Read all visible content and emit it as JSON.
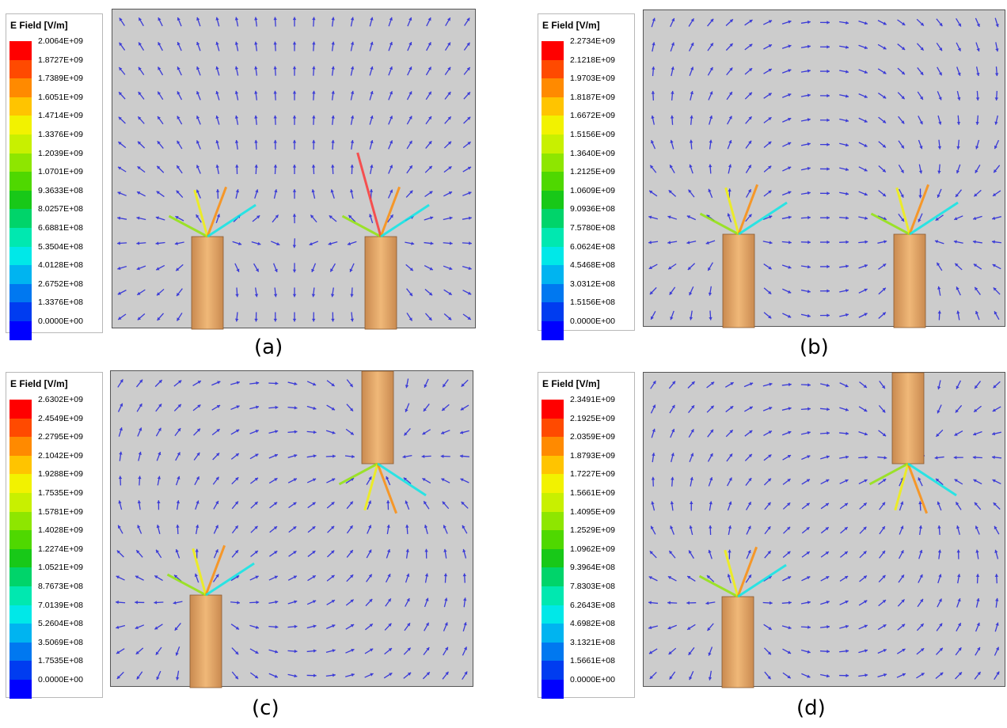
{
  "panels": [
    {
      "id": "a",
      "caption": "(a)",
      "legend": {
        "title": "E Field [V/m]",
        "ticks": [
          "2.0064E+09",
          "1.8727E+09",
          "1.7389E+09",
          "1.6051E+09",
          "1.4714E+09",
          "1.3376E+09",
          "1.2039E+09",
          "1.0701E+09",
          "9.3633E+08",
          "8.0257E+08",
          "6.6881E+08",
          "5.3504E+08",
          "4.0128E+08",
          "2.6752E+08",
          "1.3376E+08",
          "0.0000E+00"
        ]
      },
      "conductors": [
        {
          "label": "left rod",
          "position": "bottom"
        },
        {
          "label": "right rod",
          "position": "bottom"
        }
      ]
    },
    {
      "id": "b",
      "caption": "(b)",
      "legend": {
        "title": "E Field [V/m]",
        "ticks": [
          "2.2734E+09",
          "2.1218E+09",
          "1.9703E+09",
          "1.8187E+09",
          "1.6672E+09",
          "1.5156E+09",
          "1.3640E+09",
          "1.2125E+09",
          "1.0609E+09",
          "9.0936E+08",
          "7.5780E+08",
          "6.0624E+08",
          "4.5468E+08",
          "3.0312E+08",
          "1.5156E+08",
          "0.0000E+00"
        ]
      },
      "conductors": [
        {
          "label": "left rod",
          "position": "bottom"
        },
        {
          "label": "right rod",
          "position": "bottom"
        }
      ]
    },
    {
      "id": "c",
      "caption": "(c)",
      "legend": {
        "title": "E Field [V/m]",
        "ticks": [
          "2.6302E+09",
          "2.4549E+09",
          "2.2795E+09",
          "2.1042E+09",
          "1.9288E+09",
          "1.7535E+09",
          "1.5781E+09",
          "1.4028E+09",
          "1.2274E+09",
          "1.0521E+09",
          "8.7673E+08",
          "7.0139E+08",
          "5.2604E+08",
          "3.5069E+08",
          "1.7535E+08",
          "0.0000E+00"
        ]
      },
      "conductors": [
        {
          "label": "left rod",
          "position": "bottom"
        },
        {
          "label": "right rod",
          "position": "top"
        }
      ]
    },
    {
      "id": "d",
      "caption": "(d)",
      "legend": {
        "title": "E Field [V/m]",
        "ticks": [
          "2.3491E+09",
          "2.1925E+09",
          "2.0359E+09",
          "1.8793E+09",
          "1.7227E+09",
          "1.5661E+09",
          "1.4095E+09",
          "1.2529E+09",
          "1.0962E+09",
          "9.3964E+08",
          "7.8303E+08",
          "6.2643E+08",
          "4.6982E+08",
          "3.1321E+08",
          "1.5661E+08",
          "0.0000E+00"
        ]
      },
      "conductors": [
        {
          "label": "left rod",
          "position": "bottom"
        },
        {
          "label": "right rod",
          "position": "top"
        }
      ]
    }
  ],
  "colors": {
    "ramp": [
      "#ff0000",
      "#ff4a00",
      "#ff8a00",
      "#ffc400",
      "#f2f200",
      "#c8f000",
      "#8ee600",
      "#4fd800",
      "#18c818",
      "#00d46a",
      "#00e8b0",
      "#00e8e8",
      "#00b4f0",
      "#0078f0",
      "#003cf0",
      "#0000ff"
    ],
    "plot_background": "#cccccc",
    "vector_default": "#3b3bd6",
    "conductor": "#e0a060"
  }
}
